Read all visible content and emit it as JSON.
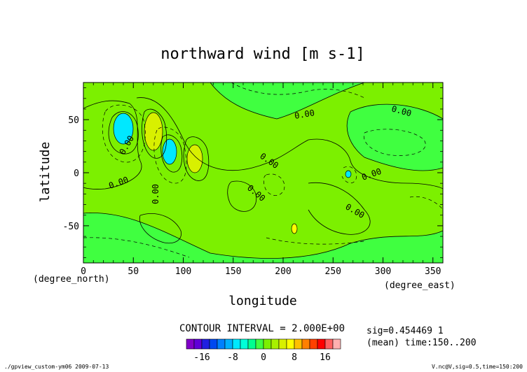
{
  "chart_data": {
    "type": "heatmap",
    "title": "northward wind [m s-1]",
    "xlabel": "longitude",
    "ylabel": "latitude",
    "x_units": "(degree_east)",
    "y_units": "(degree_north)",
    "xlim": [
      0,
      360
    ],
    "ylim": [
      -85,
      85
    ],
    "x_ticks": [
      0,
      50,
      100,
      150,
      200,
      250,
      300,
      350
    ],
    "y_ticks": [
      -50,
      0,
      50
    ],
    "contour_interval_label": "CONTOUR INTERVAL = 2.000E+00",
    "zero_contour_label": "0.00",
    "info_lines": [
      "sig=0.454469 1",
      "(mean) time:150..200"
    ],
    "colorbar": {
      "bounds": [
        -20,
        -18,
        -16,
        -14,
        -12,
        -10,
        -8,
        -6,
        -4,
        -2,
        0,
        2,
        4,
        6,
        8,
        10,
        12,
        14,
        16,
        18,
        20
      ],
      "colors": [
        "#8000c8",
        "#6000d8",
        "#2020e0",
        "#0048f0",
        "#0080ff",
        "#00b0ff",
        "#00e8ff",
        "#00ffd8",
        "#00ff90",
        "#40ff40",
        "#7cf000",
        "#a8f000",
        "#d8f000",
        "#ffff00",
        "#ffc000",
        "#ff8000",
        "#ff4000",
        "#ff0000",
        "#ff6060",
        "#ffb0b0"
      ],
      "tick_values": [
        -16,
        -8,
        0,
        8,
        16
      ]
    },
    "features": [
      {
        "lon": 38,
        "lat": 45,
        "value": -8
      },
      {
        "lon": 72,
        "lat": 40,
        "value": 7
      },
      {
        "lon": 85,
        "lat": 20,
        "value": -8
      },
      {
        "lon": 108,
        "lat": 12,
        "value": 7
      },
      {
        "lon": 208,
        "lat": -55,
        "value": 7
      },
      {
        "lon": 262,
        "lat": -2,
        "value": -6
      }
    ]
  },
  "footer": {
    "left": "./gpview_custom-ym06  2009-07-13",
    "right": "V.nc@V,sig=0.5,time=150:200"
  }
}
